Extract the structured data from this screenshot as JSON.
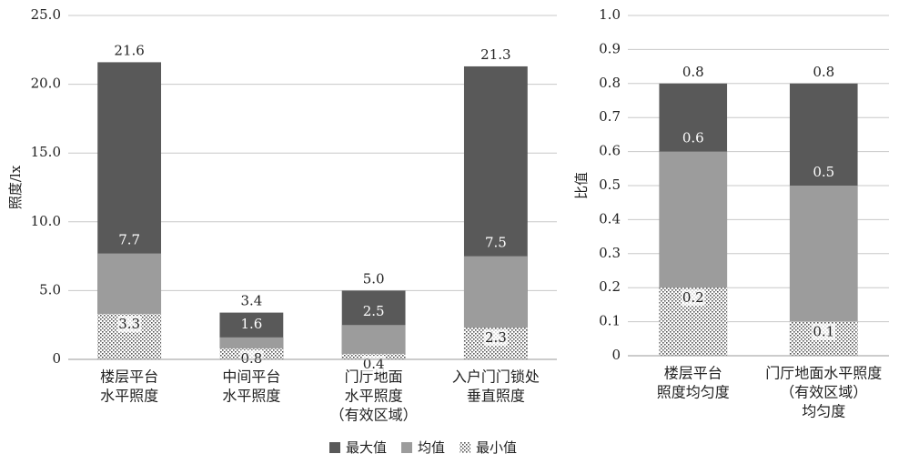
{
  "chart_data": [
    {
      "type": "overlap-bar",
      "y_label": "照度/lx",
      "categories": [
        [
          "楼层平台",
          "水平照度"
        ],
        [
          "中间平台",
          "水平照度"
        ],
        [
          "门厅地面",
          "水平照度",
          "（有效区域）"
        ],
        [
          "入户门门锁处",
          "垂直照度"
        ]
      ],
      "series": [
        {
          "name": "最大值",
          "color": "#595959",
          "label_color": "#222222",
          "values": [
            21.6,
            3.4,
            5.0,
            21.3
          ],
          "value_labels": [
            "21.6",
            "3.4",
            "5.0",
            "21.3"
          ]
        },
        {
          "name": "均值",
          "color": "#9c9c9c",
          "label_color": "#ffffff",
          "values": [
            7.7,
            1.6,
            2.5,
            7.5
          ]
        },
        {
          "name": "最小值",
          "color": "#555555",
          "pattern": "dots",
          "label_color": "#222222",
          "values": [
            3.3,
            0.8,
            0.4,
            2.3
          ]
        }
      ],
      "ylim": [
        0,
        25
      ],
      "yticks": [
        0,
        {
          "value": 5,
          "label": "5.0"
        },
        {
          "value": 10,
          "label": "10.0"
        },
        {
          "value": 15,
          "label": "15.0"
        },
        {
          "value": 20,
          "label": "20.0"
        },
        {
          "value": 25,
          "label": "25.0"
        }
      ],
      "grid": true,
      "legend": "bottom"
    },
    {
      "type": "overlap-bar",
      "y_label": "比值",
      "categories": [
        [
          "楼层平台",
          "照度均匀度"
        ],
        [
          "门厅地面水平照度",
          "（有效区域）",
          "均匀度"
        ]
      ],
      "series": [
        {
          "color": "#595959",
          "label_color": "#222222",
          "values": [
            0.8,
            0.8
          ]
        },
        {
          "color": "#9c9c9c",
          "label_color": "#ffffff",
          "values": [
            0.6,
            0.5
          ]
        },
        {
          "color": "#555555",
          "pattern": "dots",
          "label_color": "#222222",
          "values": [
            0.2,
            0.1
          ]
        }
      ],
      "ylim": [
        0,
        1
      ],
      "yticks": [
        0,
        0.1,
        0.2,
        0.3,
        0.4,
        0.5,
        0.6,
        0.7,
        0.8,
        0.9,
        {
          "value": 1,
          "label": "1.0"
        }
      ],
      "grid": true
    }
  ]
}
